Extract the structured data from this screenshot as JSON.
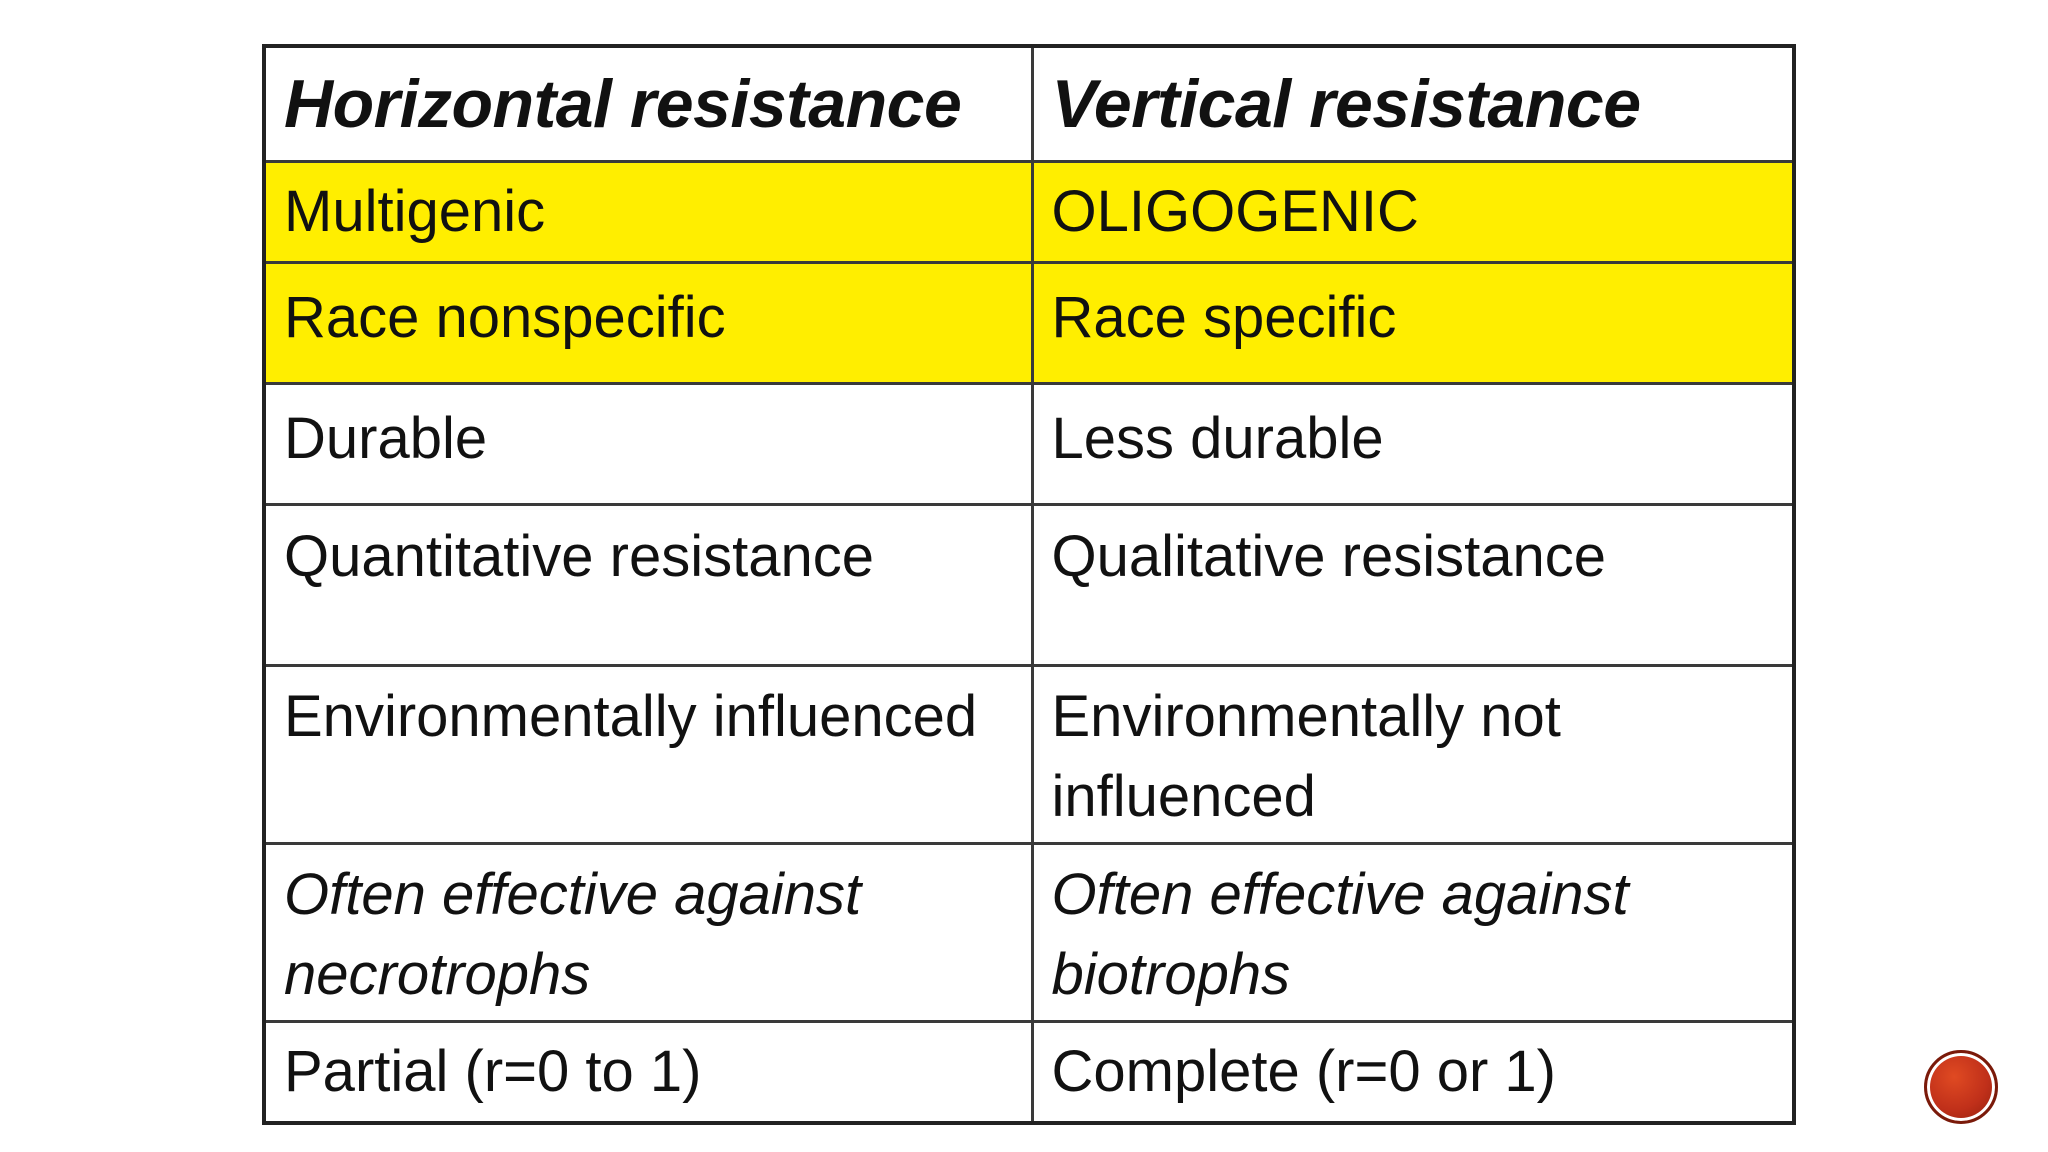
{
  "table": {
    "headers": [
      "Horizontal resistance",
      "Vertical resistance"
    ],
    "rows": [
      {
        "left": "Multigenic",
        "right": "OLIGOGENIC",
        "highlight": true
      },
      {
        "left": "Race nonspecific",
        "right": "Race specific",
        "highlight": true
      },
      {
        "left": "Durable",
        "right": "Less durable",
        "highlight": false
      },
      {
        "left": "Quantitative resistance",
        "right": "Qualitative resistance",
        "highlight": false
      },
      {
        "left": "Environmentally influenced",
        "right": "Environmentally not influenced",
        "highlight": false
      },
      {
        "left": "Often effective against necrotrophs",
        "right": "Often effective against biotrophs",
        "highlight": false,
        "italic": true
      },
      {
        "left": "Partial  (r=0 to 1)",
        "right": "Complete   (r=0 or 1)",
        "highlight": false
      }
    ]
  },
  "colors": {
    "highlight": "#ffee00",
    "border": "#222222",
    "nav_button": "#c0301a"
  },
  "nav_button": {
    "icon": "circle-nav-icon"
  }
}
